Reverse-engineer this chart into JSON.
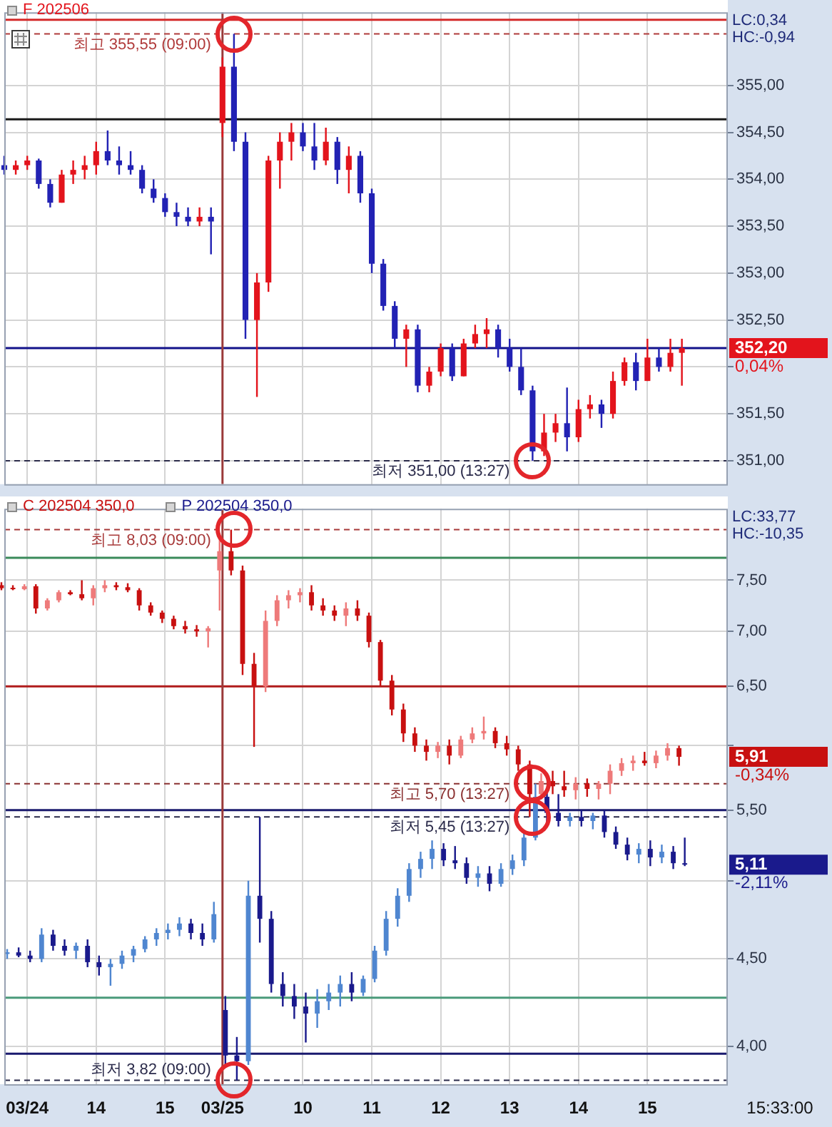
{
  "chart_data": [
    {
      "type": "candlestick",
      "legend": "top left",
      "grid": true,
      "tick_labels": "y",
      "categories": [
        null,
        null,
        "03/24",
        null,
        null,
        null,
        null,
        null,
        "14",
        null,
        null,
        null,
        null,
        null,
        "15",
        null,
        null,
        null,
        null,
        "03/25",
        null,
        null,
        null,
        null,
        null,
        null,
        "10",
        null,
        null,
        null,
        null,
        null,
        "11",
        null,
        null,
        null,
        null,
        null,
        "12",
        null,
        null,
        null,
        null,
        null,
        "13",
        null,
        null,
        null,
        null,
        null,
        "14",
        null,
        null,
        null,
        null,
        null,
        "15",
        null,
        null,
        null,
        null,
        null,
        null,
        null
      ],
      "series": [
        {
          "name": "F 202506",
          "color": "#e3141c",
          "colors": [
            "#2222b4",
            "#e3141c",
            "#e3141c",
            "#2222b4",
            "#2222b4",
            "#e3141c",
            "#e3141c",
            "#e3141c",
            "#e3141c",
            "#2222b4",
            "#2222b4",
            "#2222b4",
            "#2222b4",
            "#2222b4",
            "#2222b4",
            "#2222b4",
            "#2222b4",
            "#e3141c",
            "#2222b4",
            "#e3141c",
            "#2222b4",
            "#2222b4",
            "#e3141c",
            "#e3141c",
            "#e3141c",
            "#e3141c",
            "#2222b4",
            "#2222b4",
            "#e3141c",
            "#2222b4",
            "#e3141c",
            "#2222b4",
            "#2222b4",
            "#2222b4",
            "#2222b4",
            "#e3141c",
            "#2222b4",
            "#e3141c",
            "#e3141c",
            "#2222b4",
            "#e3141c",
            "#e3141c",
            "#e3141c",
            "#2222b4",
            "#2222b4",
            "#2222b4",
            "#2222b4",
            "#e3141c",
            "#e3141c",
            "#2222b4",
            "#e3141c",
            "#e3141c",
            "#2222b4",
            "#e3141c",
            "#e3141c",
            "#2222b4",
            "#e3141c",
            "#2222b4",
            "#e3141c",
            "#e3141c",
            null,
            null,
            null,
            null
          ],
          "ohlc": [
            [
              354.15,
              354.25,
              354.05,
              354.1
            ],
            [
              354.1,
              354.2,
              354.05,
              354.15
            ],
            [
              354.15,
              354.25,
              354.1,
              354.2
            ],
            [
              354.2,
              354.22,
              353.9,
              353.95
            ],
            [
              353.95,
              354.0,
              353.7,
              353.75
            ],
            [
              353.75,
              354.1,
              353.75,
              354.05
            ],
            [
              354.05,
              354.2,
              353.95,
              354.1
            ],
            [
              354.1,
              354.25,
              354.0,
              354.15
            ],
            [
              354.15,
              354.4,
              354.05,
              354.3
            ],
            [
              354.3,
              354.52,
              354.15,
              354.2
            ],
            [
              354.2,
              354.35,
              354.05,
              354.15
            ],
            [
              354.15,
              354.3,
              354.05,
              354.1
            ],
            [
              354.1,
              354.15,
              353.85,
              353.9
            ],
            [
              353.9,
              354.0,
              353.75,
              353.8
            ],
            [
              353.8,
              353.85,
              353.6,
              353.65
            ],
            [
              353.65,
              353.75,
              353.5,
              353.6
            ],
            [
              353.6,
              353.7,
              353.5,
              353.55
            ],
            [
              353.55,
              353.7,
              353.5,
              353.6
            ],
            [
              353.6,
              353.7,
              353.2,
              353.55
            ],
            [
              354.6,
              355.3,
              354.45,
              355.2
            ],
            [
              355.2,
              355.55,
              354.3,
              354.4
            ],
            [
              354.4,
              354.5,
              352.3,
              352.5
            ],
            [
              352.5,
              353.0,
              351.68,
              352.9
            ],
            [
              352.9,
              354.25,
              352.8,
              354.2
            ],
            [
              354.2,
              354.5,
              353.9,
              354.4
            ],
            [
              354.4,
              354.6,
              354.2,
              354.5
            ],
            [
              354.5,
              354.6,
              354.3,
              354.35
            ],
            [
              354.35,
              354.6,
              354.1,
              354.2
            ],
            [
              354.2,
              354.55,
              354.15,
              354.4
            ],
            [
              354.4,
              354.45,
              353.95,
              354.1
            ],
            [
              354.1,
              354.35,
              353.85,
              354.25
            ],
            [
              354.25,
              354.3,
              353.75,
              353.85
            ],
            [
              353.85,
              353.9,
              353.0,
              353.1
            ],
            [
              353.1,
              353.15,
              352.6,
              352.65
            ],
            [
              352.65,
              352.7,
              352.2,
              352.3
            ],
            [
              352.3,
              352.45,
              352.0,
              352.4
            ],
            [
              352.4,
              352.45,
              351.73,
              351.8
            ],
            [
              351.8,
              352.0,
              351.73,
              351.95
            ],
            [
              351.95,
              352.25,
              351.9,
              352.2
            ],
            [
              352.2,
              352.25,
              351.85,
              351.9
            ],
            [
              351.9,
              352.3,
              351.9,
              352.25
            ],
            [
              352.25,
              352.45,
              352.2,
              352.35
            ],
            [
              352.35,
              352.52,
              352.2,
              352.4
            ],
            [
              352.4,
              352.45,
              352.1,
              352.2
            ],
            [
              352.2,
              352.3,
              351.95,
              352.0
            ],
            [
              352.0,
              352.2,
              351.7,
              351.75
            ],
            [
              351.75,
              351.8,
              351.0,
              351.1
            ],
            [
              351.1,
              351.5,
              351.05,
              351.3
            ],
            [
              351.3,
              351.5,
              351.2,
              351.4
            ],
            [
              351.4,
              351.78,
              351.1,
              351.25
            ],
            [
              351.25,
              351.65,
              351.2,
              351.55
            ],
            [
              351.55,
              351.7,
              351.45,
              351.6
            ],
            [
              351.6,
              351.65,
              351.35,
              351.5
            ],
            [
              351.5,
              351.95,
              351.45,
              351.85
            ],
            [
              351.85,
              352.1,
              351.8,
              352.05
            ],
            [
              352.05,
              352.15,
              351.75,
              351.85
            ],
            [
              351.85,
              352.3,
              351.85,
              352.1
            ],
            [
              352.1,
              352.2,
              351.95,
              352.0
            ],
            [
              352.0,
              352.3,
              351.95,
              352.15
            ],
            [
              352.15,
              352.3,
              351.8,
              352.2
            ],
            null,
            null,
            null,
            null
          ],
          "value_labels": [
            null,
            null,
            null,
            null,
            null,
            null,
            null,
            null,
            null,
            null,
            null,
            null,
            null,
            null,
            null,
            null,
            null,
            null,
            null,
            null,
            null,
            null,
            null,
            null,
            null,
            null,
            null,
            null,
            null,
            null,
            null,
            null,
            null,
            null,
            null,
            null,
            null,
            null,
            null,
            null,
            null,
            null,
            null,
            null,
            null,
            null,
            null,
            null,
            null,
            null,
            null,
            null,
            null,
            null,
            null,
            null,
            null,
            null,
            null,
            "352,20",
            null,
            null,
            null,
            null
          ]
        }
      ],
      "ylim": [
        350.75,
        355.78
      ],
      "yticks": [
        {
          "value": 351,
          "label": "351,00"
        },
        {
          "value": 351.5,
          "label": "351,50"
        },
        {
          "value": 352,
          "label": null
        },
        {
          "value": 352.5,
          "label": "352,50"
        },
        {
          "value": 353,
          "label": "353,00"
        },
        {
          "value": 353.5,
          "label": "353,50"
        },
        {
          "value": 354,
          "label": "354,00"
        },
        {
          "value": 354.5,
          "label": "354,50"
        },
        {
          "value": 355,
          "label": "355,00"
        }
      ],
      "ref_lines": [
        {
          "axis": "y",
          "value": 355.7,
          "color": "#d42a2a"
        },
        {
          "axis": "y",
          "value": 354.64,
          "color": "#1a1a1a"
        },
        {
          "axis": "y",
          "value": 352.2,
          "color": "#12128a"
        },
        {
          "axis": "y",
          "value": 355.55,
          "label": "최고 355,55 (09:00)",
          "color": "#b03a3a",
          "line_style": "dashed"
        },
        {
          "axis": "y",
          "value": 351.0,
          "label": "최저 351,00 (13:27)",
          "color": "#2a2a4a",
          "line_style": "dashed"
        },
        {
          "axis": "x",
          "value": "03/25",
          "color": "#9a3a3a"
        }
      ],
      "annotations": [
        "LC:0,34",
        "HC:-0,94",
        "0,04%"
      ]
    },
    {
      "type": "candlestick",
      "legend": "top left",
      "grid": true,
      "log": "y",
      "xlabel": "15:33:00",
      "categories": [
        null,
        null,
        "03/24",
        null,
        null,
        null,
        null,
        null,
        "14",
        null,
        null,
        null,
        null,
        null,
        "15",
        null,
        null,
        null,
        null,
        "03/25",
        null,
        null,
        null,
        null,
        null,
        null,
        "10",
        null,
        null,
        null,
        null,
        null,
        "11",
        null,
        null,
        null,
        null,
        null,
        "12",
        null,
        null,
        null,
        null,
        null,
        "13",
        null,
        null,
        null,
        null,
        null,
        "14",
        null,
        null,
        null,
        null,
        null,
        "15",
        null,
        null,
        null,
        null,
        null,
        null,
        null
      ],
      "series": [
        {
          "name": "C 202504 350,0",
          "color": "#c81010",
          "colors": [
            "#c81010",
            "#c81010",
            "#ee7a7a",
            "#c81010",
            "#ee7a7a",
            "#ee7a7a",
            "#c81010",
            "#c81010",
            "#ee7a7a",
            "#ee7a7a",
            "#c81010",
            "#c81010",
            "#c81010",
            "#c81010",
            "#c81010",
            "#c81010",
            "#c81010",
            "#c81010",
            "#ee7a7a",
            "#ee7a7a",
            "#c81010",
            "#c81010",
            "#c81010",
            "#ee7a7a",
            "#ee7a7a",
            "#ee7a7a",
            "#ee7a7a",
            "#c81010",
            "#c81010",
            "#c81010",
            "#ee7a7a",
            "#c81010",
            "#c81010",
            "#c81010",
            "#c81010",
            "#c81010",
            "#c81010",
            "#c81010",
            "#ee7a7a",
            "#c81010",
            "#ee7a7a",
            "#ee7a7a",
            "#ee7a7a",
            "#c81010",
            "#c81010",
            "#c81010",
            "#c81010",
            "#ee7a7a",
            "#c81010",
            "#c81010",
            "#ee7a7a",
            "#c81010",
            "#ee7a7a",
            "#ee7a7a",
            "#ee7a7a",
            "#ee7a7a",
            "#c81010",
            "#ee7a7a",
            "#ee7a7a",
            "#c81010",
            null,
            null,
            null,
            null
          ],
          "ohlc": [
            [
              7.45,
              7.48,
              7.4,
              7.42
            ],
            [
              7.42,
              7.45,
              7.4,
              7.41
            ],
            [
              7.41,
              7.46,
              7.4,
              7.44
            ],
            [
              7.44,
              7.46,
              7.17,
              7.22
            ],
            [
              7.22,
              7.32,
              7.2,
              7.3
            ],
            [
              7.3,
              7.4,
              7.28,
              7.38
            ],
            [
              7.38,
              7.4,
              7.35,
              7.36
            ],
            [
              7.36,
              7.5,
              7.3,
              7.32
            ],
            [
              7.32,
              7.45,
              7.25,
              7.42
            ],
            [
              7.42,
              7.5,
              7.38,
              7.45
            ],
            [
              7.45,
              7.48,
              7.4,
              7.43
            ],
            [
              7.43,
              7.47,
              7.38,
              7.4
            ],
            [
              7.4,
              7.42,
              7.2,
              7.25
            ],
            [
              7.25,
              7.28,
              7.15,
              7.18
            ],
            [
              7.18,
              7.2,
              7.08,
              7.12
            ],
            [
              7.12,
              7.15,
              7.02,
              7.05
            ],
            [
              7.05,
              7.1,
              6.98,
              7.02
            ],
            [
              7.02,
              7.06,
              6.95,
              7.0
            ],
            [
              7.0,
              7.05,
              6.85,
              7.03
            ],
            [
              7.6,
              7.95,
              7.2,
              7.8
            ],
            [
              7.8,
              8.03,
              7.55,
              7.6
            ],
            [
              7.6,
              7.65,
              6.6,
              6.7
            ],
            [
              6.7,
              6.8,
              5.99,
              6.5
            ],
            [
              6.5,
              7.2,
              6.45,
              7.1
            ],
            [
              7.1,
              7.35,
              7.05,
              7.3
            ],
            [
              7.3,
              7.4,
              7.22,
              7.35
            ],
            [
              7.35,
              7.42,
              7.28,
              7.38
            ],
            [
              7.38,
              7.45,
              7.2,
              7.25
            ],
            [
              7.25,
              7.32,
              7.15,
              7.2
            ],
            [
              7.2,
              7.25,
              7.1,
              7.15
            ],
            [
              7.15,
              7.28,
              7.05,
              7.22
            ],
            [
              7.22,
              7.3,
              7.1,
              7.15
            ],
            [
              7.15,
              7.18,
              6.85,
              6.9
            ],
            [
              6.9,
              6.92,
              6.5,
              6.55
            ],
            [
              6.55,
              6.6,
              6.25,
              6.3
            ],
            [
              6.3,
              6.35,
              6.03,
              6.1
            ],
            [
              6.1,
              6.15,
              5.95,
              6.0
            ],
            [
              6.0,
              6.05,
              5.88,
              5.95
            ],
            [
              5.95,
              6.03,
              5.9,
              6.0
            ],
            [
              6.0,
              6.05,
              5.85,
              5.92
            ],
            [
              5.92,
              6.08,
              5.9,
              6.05
            ],
            [
              6.05,
              6.15,
              6.02,
              6.1
            ],
            [
              6.1,
              6.24,
              6.05,
              6.12
            ],
            [
              6.12,
              6.15,
              5.98,
              6.02
            ],
            [
              6.02,
              6.08,
              5.92,
              5.97
            ],
            [
              5.97,
              6.0,
              5.8,
              5.85
            ],
            [
              5.85,
              5.88,
              5.45,
              5.62
            ],
            [
              5.62,
              5.78,
              5.58,
              5.72
            ],
            [
              5.72,
              5.8,
              5.62,
              5.68
            ],
            [
              5.68,
              5.8,
              5.6,
              5.65
            ],
            [
              5.65,
              5.75,
              5.58,
              5.7
            ],
            [
              5.7,
              5.74,
              5.6,
              5.66
            ],
            [
              5.66,
              5.72,
              5.58,
              5.7
            ],
            [
              5.7,
              5.85,
              5.62,
              5.8
            ],
            [
              5.8,
              5.9,
              5.76,
              5.86
            ],
            [
              5.86,
              5.92,
              5.8,
              5.88
            ],
            [
              5.88,
              5.95,
              5.84,
              5.86
            ],
            [
              5.86,
              5.96,
              5.82,
              5.92
            ],
            [
              5.92,
              6.02,
              5.88,
              5.98
            ],
            [
              5.98,
              6.0,
              5.84,
              5.91
            ],
            null,
            null,
            null,
            null
          ],
          "value_labels": [
            null,
            null,
            null,
            null,
            null,
            null,
            null,
            null,
            null,
            null,
            null,
            null,
            null,
            null,
            null,
            null,
            null,
            null,
            null,
            null,
            null,
            null,
            null,
            null,
            null,
            null,
            null,
            null,
            null,
            null,
            null,
            null,
            null,
            null,
            null,
            null,
            null,
            null,
            null,
            null,
            null,
            null,
            null,
            null,
            null,
            null,
            null,
            null,
            null,
            null,
            null,
            null,
            null,
            null,
            null,
            null,
            null,
            null,
            null,
            "5,91",
            null,
            null,
            null,
            null
          ]
        },
        {
          "name": "P 202504 350,0",
          "color": "#1a1a8c",
          "colors": [
            "#4f86d0",
            "#1a1a8c",
            "#1a1a8c",
            "#4f86d0",
            "#1a1a8c",
            "#1a1a8c",
            "#4f86d0",
            "#1a1a8c",
            "#1a1a8c",
            "#4f86d0",
            "#4f86d0",
            "#4f86d0",
            "#4f86d0",
            "#4f86d0",
            "#4f86d0",
            "#4f86d0",
            "#1a1a8c",
            "#1a1a8c",
            "#4f86d0",
            "#1a1a8c",
            "#1a1a8c",
            "#4f86d0",
            "#1a1a8c",
            "#1a1a8c",
            "#1a1a8c",
            "#1a1a8c",
            "#1a1a8c",
            "#4f86d0",
            "#4f86d0",
            "#4f86d0",
            "#1a1a8c",
            "#4f86d0",
            "#4f86d0",
            "#4f86d0",
            "#4f86d0",
            "#4f86d0",
            "#4f86d0",
            "#4f86d0",
            "#1a1a8c",
            "#1a1a8c",
            "#1a1a8c",
            "#4f86d0",
            "#1a1a8c",
            "#4f86d0",
            "#4f86d0",
            "#4f86d0",
            "#4f86d0",
            "#1a1a8c",
            "#1a1a8c",
            "#4f86d0",
            "#1a1a8c",
            "#4f86d0",
            "#1a1a8c",
            "#1a1a8c",
            "#1a1a8c",
            "#4f86d0",
            "#1a1a8c",
            "#4f86d0",
            "#1a1a8c",
            "#1a1a8c",
            null,
            null,
            null,
            null
          ],
          "ohlc": [
            [
              4.53,
              4.56,
              4.5,
              4.54
            ],
            [
              4.54,
              4.57,
              4.51,
              4.52
            ],
            [
              4.52,
              4.55,
              4.48,
              4.5
            ],
            [
              4.5,
              4.69,
              4.48,
              4.65
            ],
            [
              4.65,
              4.68,
              4.55,
              4.58
            ],
            [
              4.58,
              4.62,
              4.52,
              4.55
            ],
            [
              4.55,
              4.6,
              4.5,
              4.58
            ],
            [
              4.58,
              4.62,
              4.45,
              4.48
            ],
            [
              4.48,
              4.52,
              4.4,
              4.45
            ],
            [
              4.45,
              4.5,
              4.34,
              4.47
            ],
            [
              4.47,
              4.55,
              4.44,
              4.52
            ],
            [
              4.52,
              4.58,
              4.48,
              4.56
            ],
            [
              4.56,
              4.64,
              4.54,
              4.62
            ],
            [
              4.62,
              4.69,
              4.58,
              4.66
            ],
            [
              4.66,
              4.72,
              4.62,
              4.68
            ],
            [
              4.68,
              4.76,
              4.64,
              4.72
            ],
            [
              4.72,
              4.75,
              4.62,
              4.66
            ],
            [
              4.66,
              4.72,
              4.58,
              4.62
            ],
            [
              4.62,
              4.86,
              4.6,
              4.78
            ],
            [
              4.2,
              4.28,
              3.9,
              3.95
            ],
            [
              3.95,
              4.05,
              3.82,
              3.92
            ],
            [
              3.92,
              5.0,
              3.9,
              4.9
            ],
            [
              4.9,
              5.45,
              4.6,
              4.75
            ],
            [
              4.75,
              4.8,
              4.3,
              4.35
            ],
            [
              4.35,
              4.42,
              4.22,
              4.28
            ],
            [
              4.28,
              4.35,
              4.15,
              4.22
            ],
            [
              4.22,
              4.3,
              4.02,
              4.18
            ],
            [
              4.18,
              4.32,
              4.1,
              4.25
            ],
            [
              4.25,
              4.35,
              4.2,
              4.3
            ],
            [
              4.3,
              4.4,
              4.22,
              4.35
            ],
            [
              4.35,
              4.42,
              4.25,
              4.3
            ],
            [
              4.3,
              4.4,
              4.28,
              4.38
            ],
            [
              4.38,
              4.58,
              4.36,
              4.55
            ],
            [
              4.55,
              4.8,
              4.52,
              4.75
            ],
            [
              4.75,
              4.95,
              4.7,
              4.9
            ],
            [
              4.9,
              5.12,
              4.86,
              5.08
            ],
            [
              5.08,
              5.2,
              5.02,
              5.15
            ],
            [
              5.15,
              5.28,
              5.08,
              5.22
            ],
            [
              5.22,
              5.26,
              5.1,
              5.14
            ],
            [
              5.14,
              5.24,
              5.08,
              5.12
            ],
            [
              5.12,
              5.16,
              4.98,
              5.02
            ],
            [
              5.02,
              5.1,
              4.96,
              5.05
            ],
            [
              5.05,
              5.1,
              4.93,
              4.98
            ],
            [
              4.98,
              5.12,
              4.96,
              5.08
            ],
            [
              5.08,
              5.18,
              5.04,
              5.14
            ],
            [
              5.14,
              5.35,
              5.1,
              5.3
            ],
            [
              5.3,
              5.7,
              5.28,
              5.6
            ],
            [
              5.6,
              5.65,
              5.4,
              5.48
            ],
            [
              5.48,
              5.62,
              5.38,
              5.42
            ],
            [
              5.42,
              5.48,
              5.38,
              5.45
            ],
            [
              5.45,
              5.5,
              5.38,
              5.42
            ],
            [
              5.42,
              5.48,
              5.36,
              5.46
            ],
            [
              5.46,
              5.5,
              5.3,
              5.34
            ],
            [
              5.34,
              5.38,
              5.22,
              5.25
            ],
            [
              5.25,
              5.3,
              5.14,
              5.18
            ],
            [
              5.18,
              5.26,
              5.12,
              5.22
            ],
            [
              5.22,
              5.28,
              5.1,
              5.16
            ],
            [
              5.16,
              5.25,
              5.12,
              5.2
            ],
            [
              5.2,
              5.24,
              5.08,
              5.12
            ],
            [
              5.12,
              5.3,
              5.1,
              5.11
            ],
            null,
            null,
            null,
            null
          ],
          "value_labels": [
            null,
            null,
            null,
            null,
            null,
            null,
            null,
            null,
            null,
            null,
            null,
            null,
            null,
            null,
            null,
            null,
            null,
            null,
            null,
            null,
            null,
            null,
            null,
            null,
            null,
            null,
            null,
            null,
            null,
            null,
            null,
            null,
            null,
            null,
            null,
            null,
            null,
            null,
            null,
            null,
            null,
            null,
            null,
            null,
            null,
            null,
            null,
            null,
            null,
            null,
            null,
            null,
            null,
            null,
            null,
            null,
            null,
            null,
            null,
            "5,11",
            null,
            null,
            null,
            null
          ]
        }
      ],
      "ylim": [
        3.8,
        8.26
      ],
      "yticks": [
        {
          "value": 4,
          "label": "4,00"
        },
        {
          "value": 4.5,
          "label": "4,50"
        },
        {
          "value": 5,
          "label": null
        },
        {
          "value": 5.5,
          "label": "5,50"
        },
        {
          "value": 6,
          "label": null
        },
        {
          "value": 6.5,
          "label": "6,50"
        },
        {
          "value": 7,
          "label": "7,00"
        },
        {
          "value": 7.5,
          "label": "7,50"
        }
      ],
      "ref_lines": [
        {
          "axis": "y",
          "value": 8.03,
          "label": "최고 8,03 (09:00)",
          "color": "#a83a3a",
          "line_style": "dashed"
        },
        {
          "axis": "y",
          "value": 7.73,
          "color": "#3a8a5a"
        },
        {
          "axis": "y",
          "value": 6.5,
          "color": "#b01c1c"
        },
        {
          "axis": "y",
          "value": 5.7,
          "label": "최고 5,70 (13:27)",
          "color": "#8a3030",
          "line_style": "dashed"
        },
        {
          "axis": "y",
          "value": 5.5,
          "color": "#1a1a6e"
        },
        {
          "axis": "y",
          "value": 5.45,
          "label": "최저 5,45 (13:27)",
          "color": "#2a2a4a",
          "line_style": "dashed"
        },
        {
          "axis": "y",
          "value": 4.27,
          "color": "#4a9a7a"
        },
        {
          "axis": "y",
          "value": 3.96,
          "color": "#1a1a6e"
        },
        {
          "axis": "y",
          "value": 3.82,
          "label": "최저 3,82 (09:00)",
          "color": "#2a2a4a",
          "line_style": "dashed"
        },
        {
          "axis": "x",
          "value": "03/25",
          "color": "#9a3a3a"
        }
      ],
      "annotations": [
        "LC:33,77",
        "HC:-10,35",
        "-0,34%",
        "-2,11%"
      ]
    }
  ]
}
